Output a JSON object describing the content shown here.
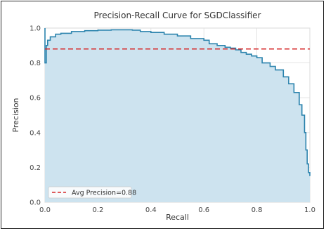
{
  "chart_data": {
    "type": "area",
    "title": "Precision-Recall Curve for SGDClassifier",
    "xlabel": "Recall",
    "ylabel": "Precision",
    "xlim": [
      0.0,
      1.0
    ],
    "ylim": [
      0.0,
      1.0
    ],
    "x_ticks": [
      "0.0",
      "0.2",
      "0.4",
      "0.6",
      "0.8",
      "1.0"
    ],
    "y_ticks": [
      "0.0",
      "0.2",
      "0.4",
      "0.6",
      "0.8",
      "1.0"
    ],
    "grid": true,
    "legend_placement": "lower-left",
    "series": [
      {
        "kind": "pr-curve",
        "color": "#2b83ad",
        "fill_color": "#cde3ef",
        "recall": [
          0.0,
          0.0,
          0.005,
          0.01,
          0.02,
          0.04,
          0.06,
          0.1,
          0.15,
          0.2,
          0.25,
          0.3,
          0.33,
          0.36,
          0.4,
          0.45,
          0.5,
          0.55,
          0.6,
          0.62,
          0.65,
          0.68,
          0.7,
          0.72,
          0.74,
          0.76,
          0.78,
          0.8,
          0.82,
          0.85,
          0.87,
          0.9,
          0.92,
          0.94,
          0.96,
          0.97,
          0.98,
          0.985,
          0.99,
          0.995,
          1.0
        ],
        "precision": [
          1.0,
          0.8,
          0.9,
          0.93,
          0.95,
          0.965,
          0.97,
          0.98,
          0.985,
          0.988,
          0.99,
          0.99,
          0.988,
          0.98,
          0.975,
          0.965,
          0.955,
          0.94,
          0.93,
          0.91,
          0.9,
          0.89,
          0.885,
          0.875,
          0.86,
          0.85,
          0.84,
          0.83,
          0.8,
          0.78,
          0.76,
          0.72,
          0.68,
          0.63,
          0.56,
          0.5,
          0.4,
          0.3,
          0.22,
          0.17,
          0.15
        ]
      },
      {
        "kind": "reference-line",
        "name": "Avg Precision=0.88",
        "color": "#d62728",
        "style": "dashed",
        "y": 0.88
      }
    ]
  }
}
